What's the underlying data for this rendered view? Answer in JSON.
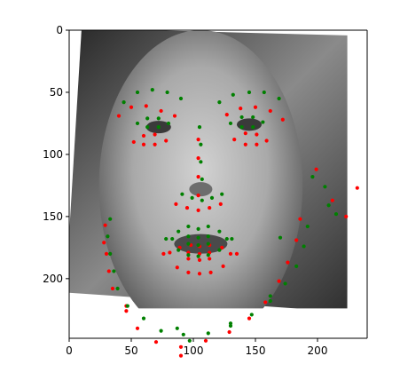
{
  "chart_data": {
    "type": "scatter",
    "title": "",
    "xlabel": "",
    "ylabel": "",
    "xlim": [
      0,
      240
    ],
    "ylim": [
      248,
      0
    ],
    "x_ticks": [
      0,
      50,
      100,
      150,
      200
    ],
    "y_ticks": [
      0,
      50,
      100,
      150,
      200
    ],
    "x_tick_labels": [
      "0",
      "50",
      "100",
      "150",
      "200"
    ],
    "y_tick_labels": [
      "0",
      "50",
      "100",
      "150",
      "200"
    ],
    "grid": false,
    "legend": "none",
    "image_extent": {
      "x": [
        0,
        224
      ],
      "y": [
        0,
        224
      ]
    },
    "series": [
      {
        "color": "#ff0000",
        "points": [
          [
            29,
            157
          ],
          [
            28,
            171
          ],
          [
            30,
            180
          ],
          [
            32,
            194
          ],
          [
            35,
            208
          ],
          [
            46,
            226
          ],
          [
            55,
            240
          ],
          [
            70,
            251
          ],
          [
            90,
            255
          ],
          [
            110,
            250
          ],
          [
            129,
            243
          ],
          [
            145,
            232
          ],
          [
            158,
            219
          ],
          [
            169,
            202
          ],
          [
            176,
            187
          ],
          [
            183,
            169
          ],
          [
            186,
            152
          ],
          [
            40,
            69
          ],
          [
            50,
            62
          ],
          [
            62,
            61
          ],
          [
            74,
            65
          ],
          [
            85,
            69
          ],
          [
            127,
            68
          ],
          [
            138,
            63
          ],
          [
            150,
            62
          ],
          [
            162,
            65
          ],
          [
            172,
            72
          ],
          [
            104,
            88
          ],
          [
            104,
            103
          ],
          [
            104,
            118
          ],
          [
            104,
            133
          ],
          [
            86,
            140
          ],
          [
            95,
            143
          ],
          [
            104,
            145
          ],
          [
            113,
            143
          ],
          [
            122,
            140
          ],
          [
            52,
            90
          ],
          [
            60,
            85
          ],
          [
            69,
            84
          ],
          [
            78,
            89
          ],
          [
            69,
            92
          ],
          [
            60,
            92
          ],
          [
            133,
            88
          ],
          [
            142,
            83
          ],
          [
            151,
            84
          ],
          [
            159,
            89
          ],
          [
            151,
            92
          ],
          [
            142,
            92
          ],
          [
            76,
            180
          ],
          [
            89,
            175
          ],
          [
            98,
            173
          ],
          [
            105,
            174
          ],
          [
            113,
            173
          ],
          [
            123,
            175
          ],
          [
            135,
            180
          ],
          [
            124,
            190
          ],
          [
            114,
            195
          ],
          [
            105,
            196
          ],
          [
            96,
            195
          ],
          [
            87,
            191
          ],
          [
            81,
            179
          ],
          [
            96,
            179
          ],
          [
            105,
            180
          ],
          [
            113,
            179
          ],
          [
            130,
            180
          ],
          [
            113,
            184
          ],
          [
            105,
            185
          ],
          [
            96,
            184
          ],
          [
            199,
            112
          ],
          [
            212,
            137
          ],
          [
            223,
            150
          ],
          [
            232,
            127
          ],
          [
            46,
            222
          ],
          [
            90,
            262
          ]
        ]
      },
      {
        "color": "#008000",
        "points": [
          [
            33,
            152
          ],
          [
            31,
            166
          ],
          [
            33,
            180
          ],
          [
            36,
            194
          ],
          [
            39,
            208
          ],
          [
            47,
            222
          ],
          [
            60,
            232
          ],
          [
            74,
            242
          ],
          [
            92,
            245
          ],
          [
            112,
            244
          ],
          [
            130,
            238
          ],
          [
            147,
            229
          ],
          [
            162,
            218
          ],
          [
            174,
            204
          ],
          [
            183,
            190
          ],
          [
            189,
            174
          ],
          [
            192,
            158
          ],
          [
            44,
            58
          ],
          [
            55,
            50
          ],
          [
            67,
            48
          ],
          [
            79,
            50
          ],
          [
            90,
            55
          ],
          [
            121,
            58
          ],
          [
            132,
            52
          ],
          [
            145,
            50
          ],
          [
            157,
            50
          ],
          [
            169,
            55
          ],
          [
            105,
            78
          ],
          [
            106,
            92
          ],
          [
            106,
            106
          ],
          [
            107,
            120
          ],
          [
            91,
            132
          ],
          [
            99,
            135
          ],
          [
            107,
            137
          ],
          [
            115,
            135
          ],
          [
            123,
            132
          ],
          [
            55,
            75
          ],
          [
            63,
            71
          ],
          [
            72,
            71
          ],
          [
            80,
            75
          ],
          [
            72,
            78
          ],
          [
            63,
            78
          ],
          [
            130,
            75
          ],
          [
            139,
            70
          ],
          [
            148,
            70
          ],
          [
            156,
            74
          ],
          [
            148,
            78
          ],
          [
            139,
            78
          ],
          [
            78,
            168
          ],
          [
            88,
            162
          ],
          [
            96,
            158
          ],
          [
            104,
            160
          ],
          [
            112,
            158
          ],
          [
            121,
            162
          ],
          [
            131,
            168
          ],
          [
            121,
            177
          ],
          [
            112,
            181
          ],
          [
            104,
            182
          ],
          [
            96,
            181
          ],
          [
            88,
            177
          ],
          [
            83,
            168
          ],
          [
            96,
            166
          ],
          [
            104,
            167
          ],
          [
            112,
            166
          ],
          [
            127,
            168
          ],
          [
            112,
            172
          ],
          [
            104,
            173
          ],
          [
            96,
            172
          ],
          [
            196,
            118
          ],
          [
            206,
            126
          ],
          [
            209,
            141
          ],
          [
            215,
            148
          ],
          [
            170,
            167
          ],
          [
            162,
            214
          ],
          [
            130,
            236
          ],
          [
            97,
            250
          ],
          [
            87,
            240
          ]
        ]
      }
    ]
  }
}
